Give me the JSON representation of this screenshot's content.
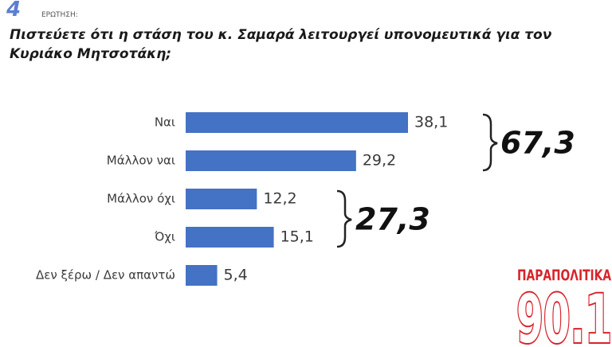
{
  "chart_data": {
    "type": "bar",
    "orientation": "horizontal",
    "question_number": "4",
    "question_label": "ΕΡΩΤΗΣΗ:",
    "title": "Πιστεύετε ότι η στάση του κ. Σαμαρά λειτουργεί υπονομευτικά για τον Κυριάκο Μητσοτάκη;",
    "categories": [
      "Ναι",
      "Μάλλον ναι",
      "Μάλλον όχι",
      "Όχι",
      "Δεν ξέρω / Δεν απαντώ"
    ],
    "values": [
      38.1,
      29.2,
      12.2,
      15.1,
      5.4
    ],
    "value_labels": [
      "38,1",
      "29,2",
      "12,2",
      "15,1",
      "5,4"
    ],
    "color": "#4472c4",
    "annotations": [
      "67,3",
      "27,3"
    ],
    "logo": {
      "name": "ΠΑΡΑΠΟΛΙΤΙΚΑ",
      "frequency": "90.1"
    }
  }
}
